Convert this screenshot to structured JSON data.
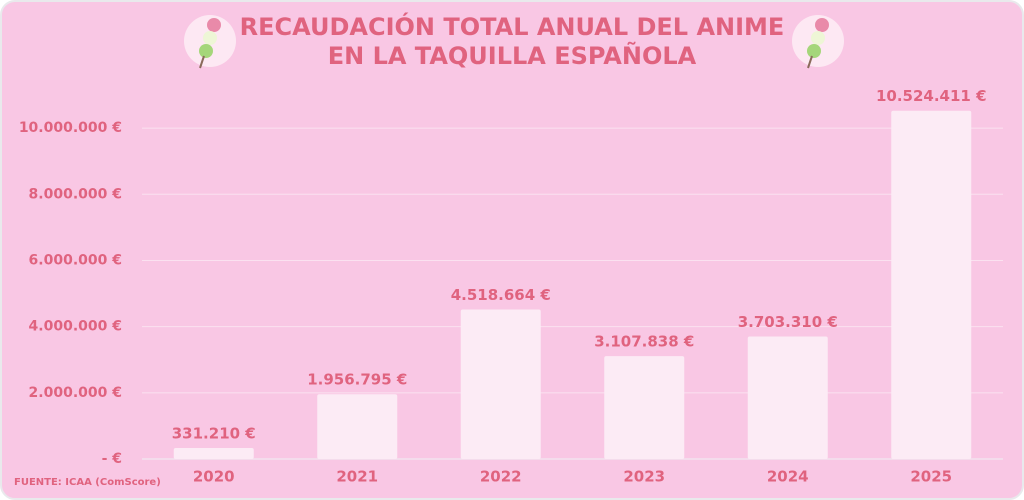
{
  "chart_data": {
    "type": "bar",
    "title": [
      "RECAUDACIÓN TOTAL ANUAL DEL ANIME",
      "EN LA TAQUILLA ESPAÑOLA"
    ],
    "source": "FUENTE: ICAA (ComScore)",
    "categories": [
      "2020",
      "2021",
      "2022",
      "2023",
      "2024",
      "2025"
    ],
    "values": [
      331210,
      1956795,
      4518664,
      3107838,
      3703310,
      10524411
    ],
    "value_labels": [
      "331.210 €",
      "1.956.795 €",
      "4.518.664 €",
      "3.107.838 €",
      "3.703.310 €",
      "10.524.411 €"
    ],
    "color": "#fcebf5",
    "ylim": [
      0,
      11000000
    ],
    "yticks": [
      {
        "value": 0,
        "label": "-   €"
      },
      {
        "value": 2000000,
        "label": "2.000.000 €"
      },
      {
        "value": 4000000,
        "label": "4.000.000 €"
      },
      {
        "value": 6000000,
        "label": "6.000.000 €"
      },
      {
        "value": 8000000,
        "label": "8.000.000 €"
      },
      {
        "value": 10000000,
        "label": "10.000.000 €"
      }
    ],
    "grid": true
  }
}
